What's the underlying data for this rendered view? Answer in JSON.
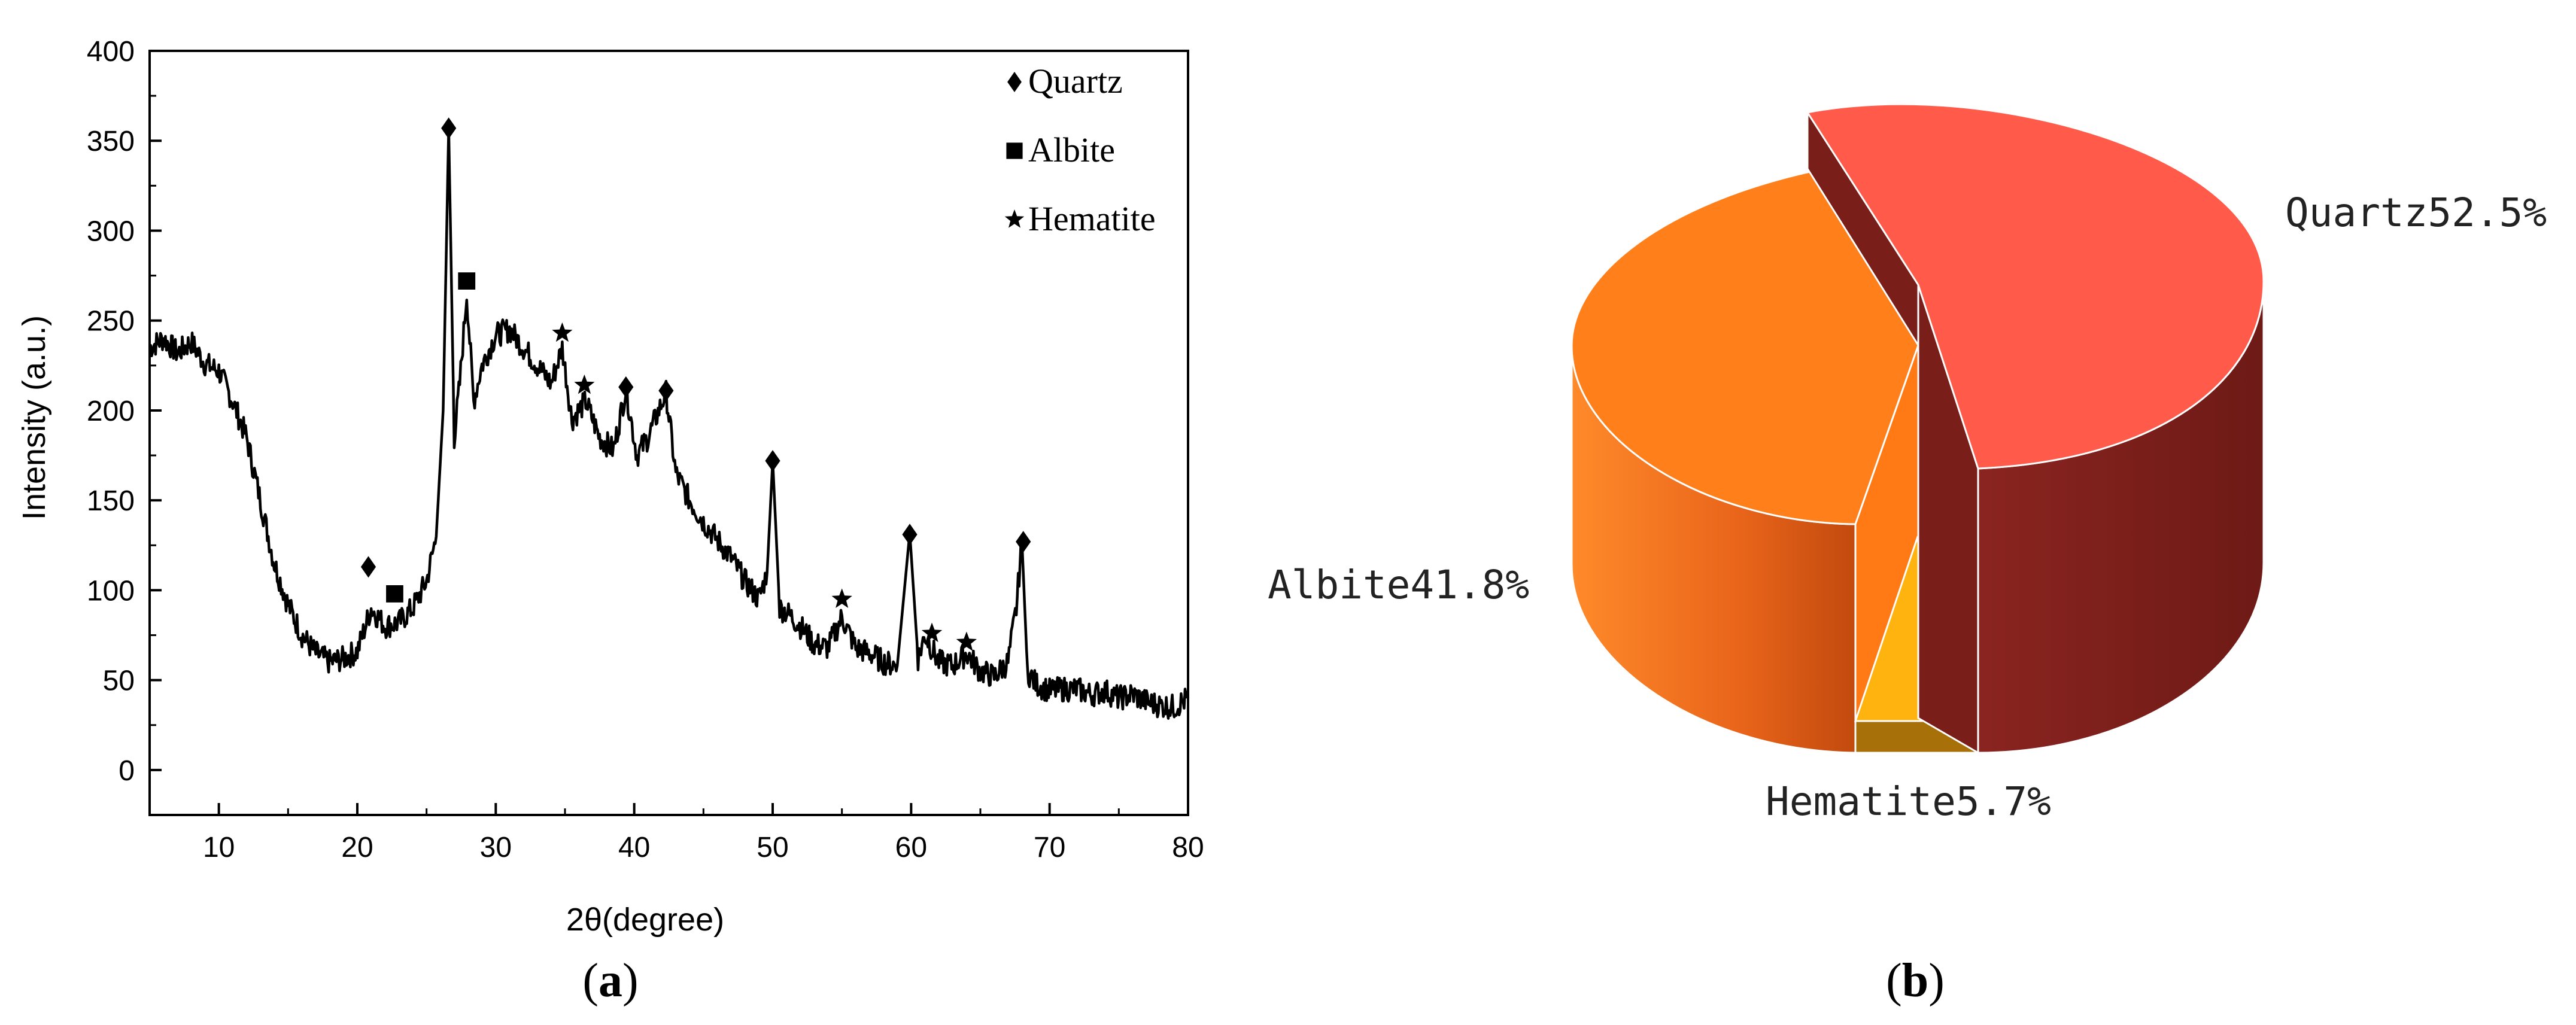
{
  "chart_data": [
    {
      "type": "line",
      "panel_label": "a",
      "title": "",
      "xlabel": "2θ(degree)",
      "ylabel": "Intensity (a.u.)",
      "xlim": [
        5,
        80
      ],
      "ylim": [
        -25,
        400
      ],
      "x_ticks": [
        10,
        20,
        30,
        40,
        50,
        60,
        70,
        80
      ],
      "y_ticks": [
        0,
        50,
        100,
        150,
        200,
        250,
        300,
        350,
        400
      ],
      "grid": false,
      "legend_position": "top-right",
      "legend": [
        {
          "marker": "diamond",
          "label": "Quartz"
        },
        {
          "marker": "square",
          "label": "Albite"
        },
        {
          "marker": "star",
          "label": "Hematite"
        }
      ],
      "series": [
        {
          "x": [
            5,
            6,
            7,
            8,
            9,
            10,
            11,
            12,
            13,
            14,
            15,
            16,
            17,
            18,
            19,
            20,
            21,
            22,
            23,
            24,
            25,
            25.7,
            26.2,
            26.6,
            27.0,
            27.4,
            27.9,
            28.4,
            29,
            30,
            31,
            32,
            33,
            34,
            34.8,
            35.5,
            36.5,
            37.5,
            38.5,
            39.4,
            40.2,
            41,
            42.3,
            43,
            44,
            45,
            46,
            47,
            48,
            49,
            49.6,
            50,
            50.5,
            51,
            52,
            53,
            54,
            55,
            56,
            57,
            58,
            59,
            59.9,
            60.5,
            61,
            62,
            63,
            64,
            65,
            66,
            67,
            67.6,
            68.0,
            68.4,
            69,
            70,
            71,
            72,
            73,
            74,
            75,
            76,
            77,
            78,
            79,
            80
          ],
          "y": [
            235,
            240,
            232,
            238,
            226,
            222,
            205,
            185,
            150,
            115,
            92,
            75,
            65,
            60,
            62,
            66,
            90,
            80,
            82,
            90,
            105,
            130,
            200,
            357,
            185,
            215,
            265,
            205,
            225,
            242,
            245,
            235,
            225,
            215,
            235,
            195,
            205,
            185,
            178,
            212,
            175,
            185,
            210,
            165,
            150,
            138,
            128,
            118,
            105,
            95,
            110,
            172,
            90,
            88,
            80,
            70,
            68,
            85,
            68,
            65,
            60,
            58,
            132,
            62,
            75,
            60,
            58,
            65,
            55,
            52,
            60,
            90,
            128,
            55,
            48,
            44,
            45,
            45,
            42,
            44,
            40,
            42,
            38,
            36,
            35,
            40
          ]
        }
      ],
      "annotations": [
        {
          "marker": "diamond",
          "x": 20.8,
          "y": 113
        },
        {
          "marker": "diamond",
          "x": 26.6,
          "y": 357
        },
        {
          "marker": "square",
          "x": 22.7,
          "y": 98
        },
        {
          "marker": "square",
          "x": 27.9,
          "y": 272
        },
        {
          "marker": "star",
          "x": 34.8,
          "y": 243
        },
        {
          "marker": "star",
          "x": 36.4,
          "y": 214
        },
        {
          "marker": "diamond",
          "x": 39.4,
          "y": 213
        },
        {
          "marker": "diamond",
          "x": 42.3,
          "y": 211
        },
        {
          "marker": "diamond",
          "x": 50.0,
          "y": 172
        },
        {
          "marker": "star",
          "x": 55.0,
          "y": 95
        },
        {
          "marker": "diamond",
          "x": 59.9,
          "y": 131
        },
        {
          "marker": "star",
          "x": 61.5,
          "y": 76
        },
        {
          "marker": "star",
          "x": 64.0,
          "y": 71
        },
        {
          "marker": "diamond",
          "x": 68.1,
          "y": 127
        }
      ]
    },
    {
      "type": "pie",
      "panel_label": "b",
      "title": "",
      "style": "3d-exploded",
      "slices": [
        {
          "label": "Quartz52.5%",
          "value": 52.5,
          "color": "#ff5a4a",
          "side_color": "#7a1e1a"
        },
        {
          "label": "Albite41.8%",
          "value": 41.8,
          "color": "#ff7f1a",
          "side_color": "#d05a10"
        },
        {
          "label": "Hematite5.7%",
          "value": 5.7,
          "color": "#ffb30f",
          "side_color": "#a87008"
        }
      ]
    }
  ]
}
